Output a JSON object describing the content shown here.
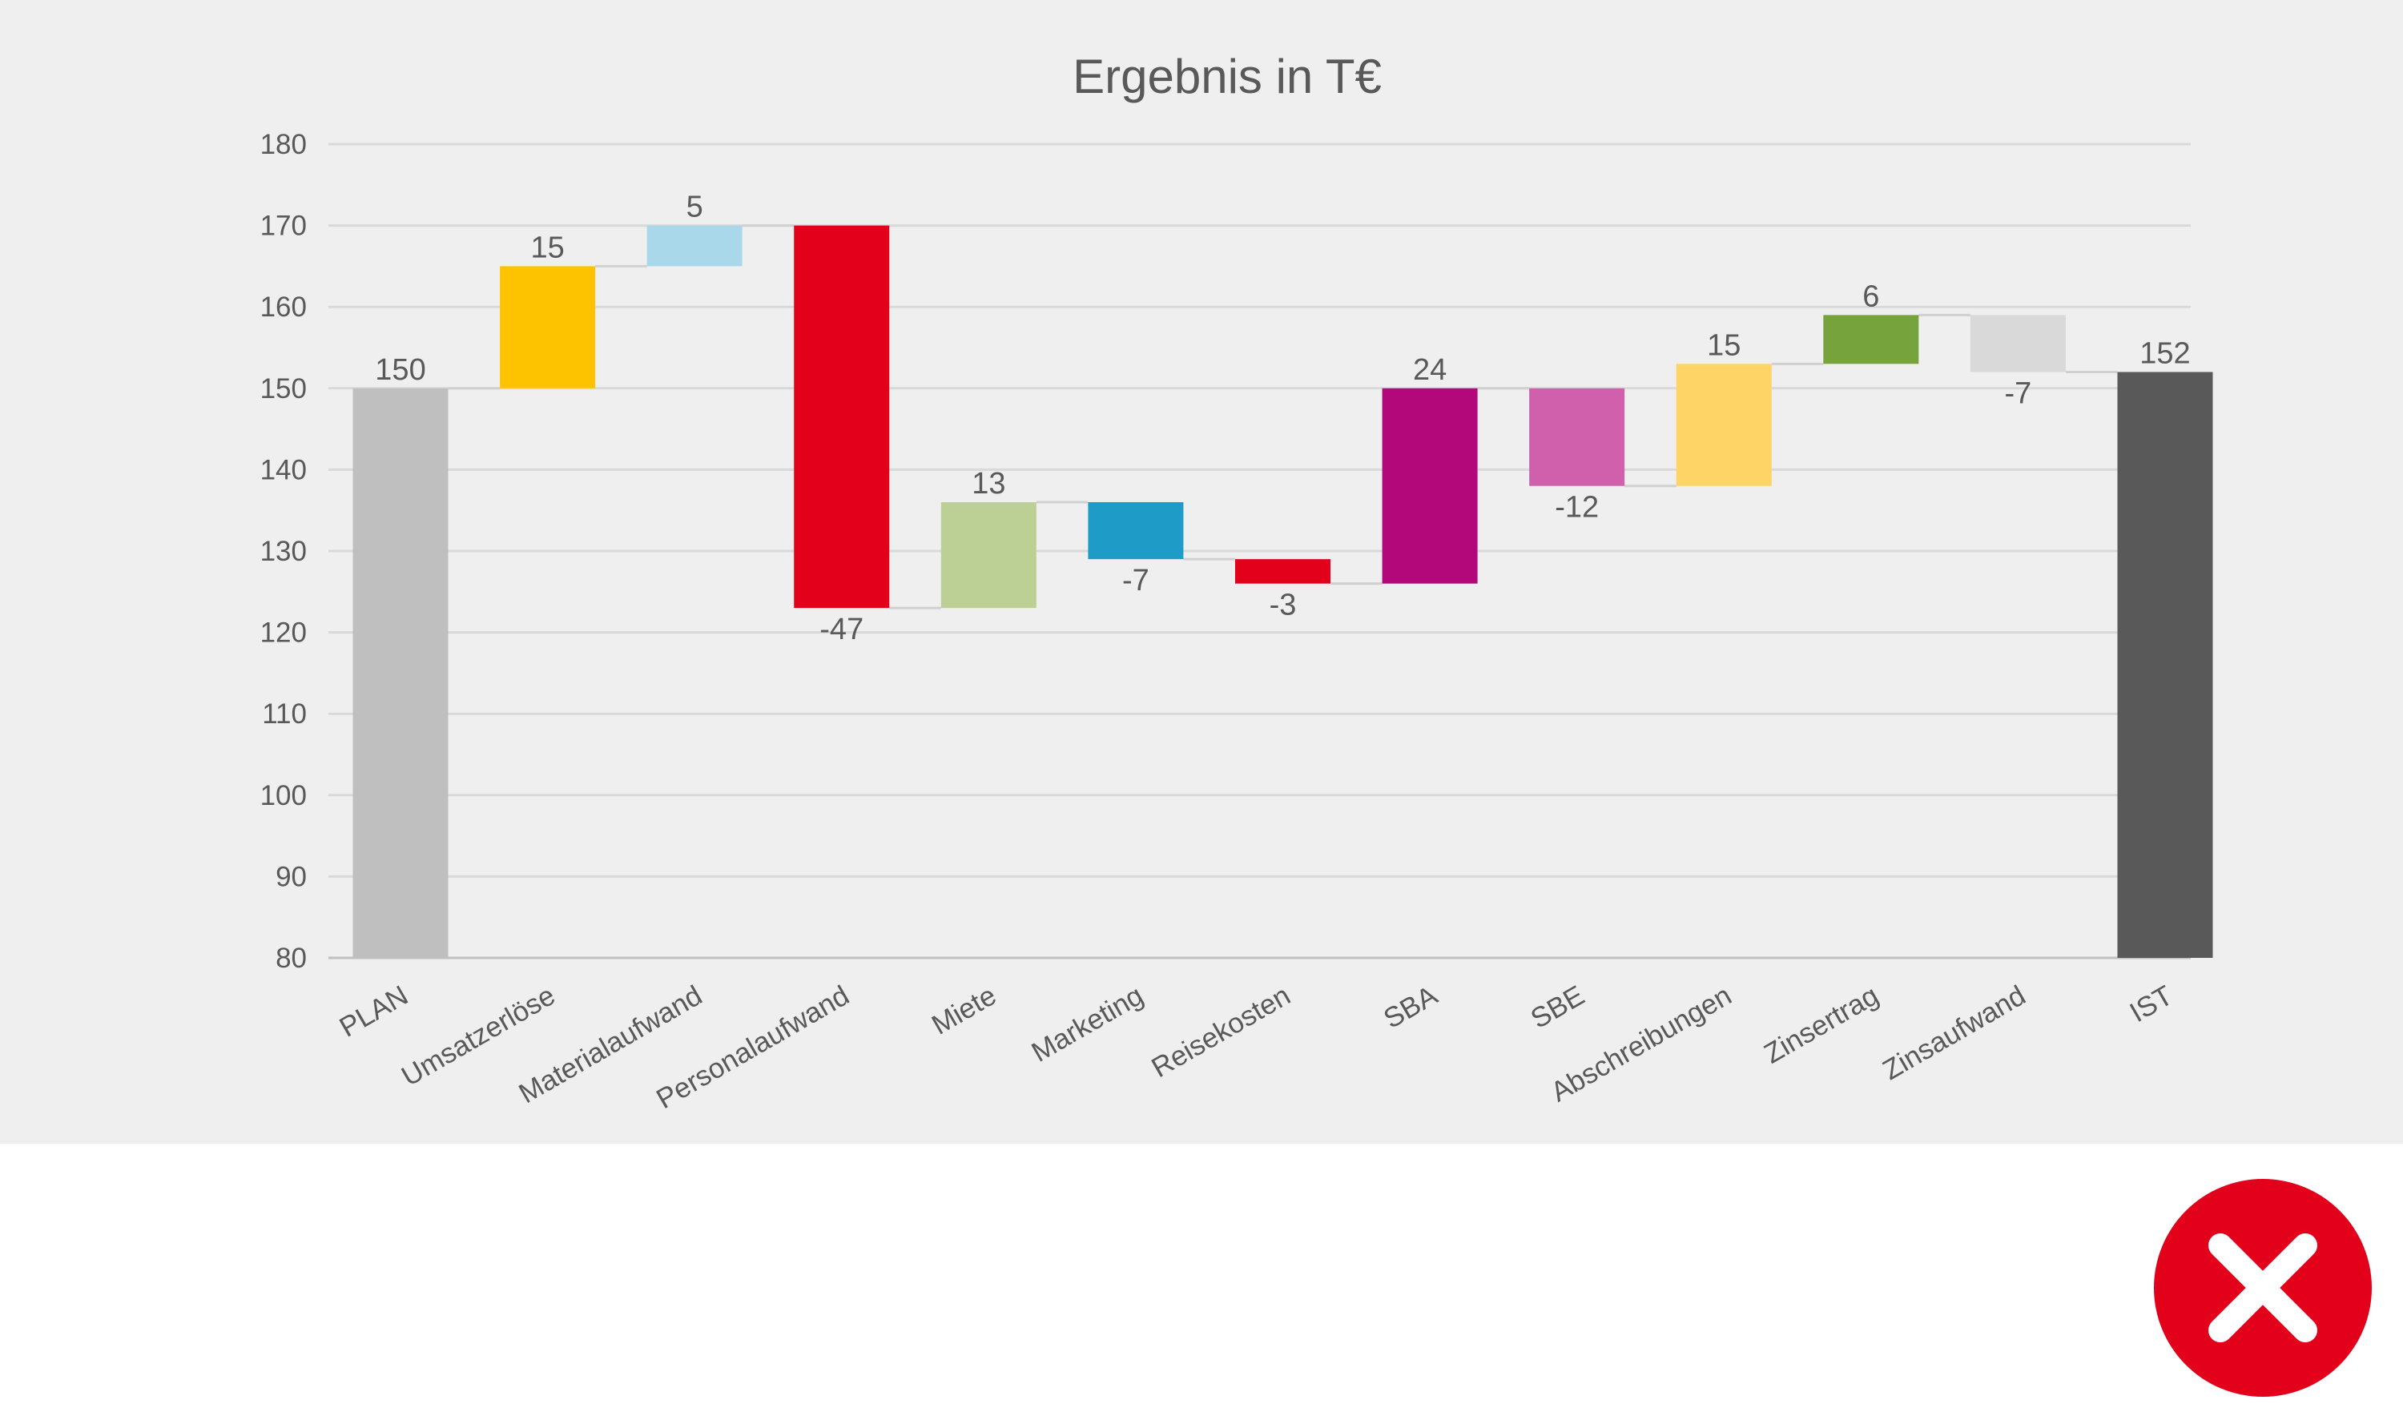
{
  "chart_data": {
    "type": "waterfall",
    "title": "Ergebnis in T€",
    "categories": [
      "PLAN",
      "Umsatzerlöse",
      "Materialaufwand",
      "Personalaufwand",
      "Miete",
      "Marketing",
      "Reisekosten",
      "SBA",
      "SBE",
      "Abschreibungen",
      "Zinsertrag",
      "Zinsaufwand",
      "IST"
    ],
    "values": [
      150,
      15,
      5,
      -47,
      13,
      -7,
      -3,
      24,
      -12,
      15,
      6,
      -7,
      152
    ],
    "labels": [
      "150",
      "15",
      "5",
      "-47",
      "13",
      "-7",
      "-3",
      "24",
      "-12",
      "15",
      "6",
      "-7",
      "152"
    ],
    "kinds": [
      "total",
      "delta",
      "delta",
      "delta",
      "delta",
      "delta",
      "delta",
      "delta",
      "delta",
      "delta",
      "delta",
      "delta",
      "total"
    ],
    "colors": [
      "#bfbfbf",
      "#fdc300",
      "#a8d8ea",
      "#e2001a",
      "#bccf95",
      "#1f9bc8",
      "#e2001a",
      "#b3087a",
      "#d060ac",
      "#fed466",
      "#76a33b",
      "#d9d9d9",
      "#595959"
    ],
    "ylim": [
      80,
      180
    ],
    "yticks": [
      80,
      90,
      100,
      110,
      120,
      130,
      140,
      150,
      160,
      170,
      180
    ],
    "grid": true,
    "legend": "none"
  },
  "badge": {
    "icon": "close-icon",
    "color": "#e3001b"
  }
}
